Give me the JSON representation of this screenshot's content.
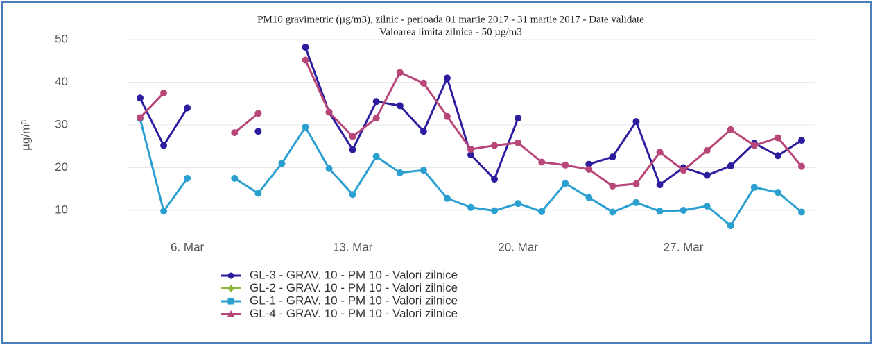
{
  "chart_data": {
    "type": "line",
    "title": "PM10 gravimetric (µg/m3), zilnic - perioada 01 martie 2017 - 31 martie 2017 - Date validate",
    "subtitle": "Valoarea limita zilnica - 50 µg/m3",
    "y_label": "µg/m³",
    "categories": [
      null,
      null,
      "6. Mar",
      null,
      null,
      null,
      null,
      null,
      null,
      "13. Mar",
      null,
      null,
      null,
      null,
      null,
      null,
      "20. Mar",
      null,
      null,
      null,
      null,
      null,
      null,
      "27. Mar",
      null,
      null,
      null,
      null,
      null
    ],
    "ylim": [
      5,
      50
    ],
    "yticks": [
      10,
      20,
      30,
      40,
      50
    ],
    "grid": true,
    "series": [
      {
        "name": "GL-3 - GRAV. 10 - PM 10 - Valori zilnice",
        "color": "#2b1d9e",
        "marker": "circle",
        "values": [
          36.3,
          25.2,
          34,
          null,
          null,
          28.5,
          null,
          48.2,
          33,
          24.2,
          35.5,
          34.5,
          28.5,
          41,
          23,
          17.3,
          31.6,
          null,
          null,
          20.8,
          22.5,
          30.8,
          16,
          20,
          18.2,
          20.4,
          25.7,
          22.8,
          26.4
        ]
      },
      {
        "name": "GL-2 - GRAV. 10 - PM 10 - Valori zilnice",
        "color": "#8db83b",
        "marker": "diamond",
        "values": [
          null,
          null,
          null,
          null,
          null,
          null,
          null,
          null,
          null,
          null,
          null,
          null,
          null,
          null,
          null,
          null,
          null,
          null,
          null,
          null,
          null,
          null,
          null,
          null,
          null,
          null,
          null,
          null,
          null
        ]
      },
      {
        "name": "GL-1 - GRAV. 10 - PM 10 - Valori zilnice",
        "color": "#2a9fd0",
        "marker": "square",
        "values": [
          31.5,
          9.8,
          17.5,
          null,
          17.5,
          14,
          21,
          29.5,
          19.8,
          13.7,
          22.6,
          18.8,
          19.4,
          12.8,
          10.7,
          9.9,
          11.6,
          9.7,
          16.3,
          13,
          9.6,
          11.8,
          9.8,
          10,
          11,
          6.4,
          15.4,
          14.2,
          9.6
        ]
      },
      {
        "name": "GL-4 - GRAV. 10 - PM 10 - Valori zilnice",
        "color": "#b94679",
        "marker": "triangle",
        "values": [
          31.7,
          37.5,
          null,
          null,
          28.2,
          32.7,
          null,
          45.2,
          33,
          27.3,
          31.6,
          42.3,
          39.8,
          32,
          24.3,
          25.2,
          25.8,
          21.3,
          20.6,
          19.6,
          15.7,
          16.2,
          23.6,
          19.4,
          24,
          28.9,
          25.2,
          27,
          20.3
        ]
      }
    ]
  }
}
